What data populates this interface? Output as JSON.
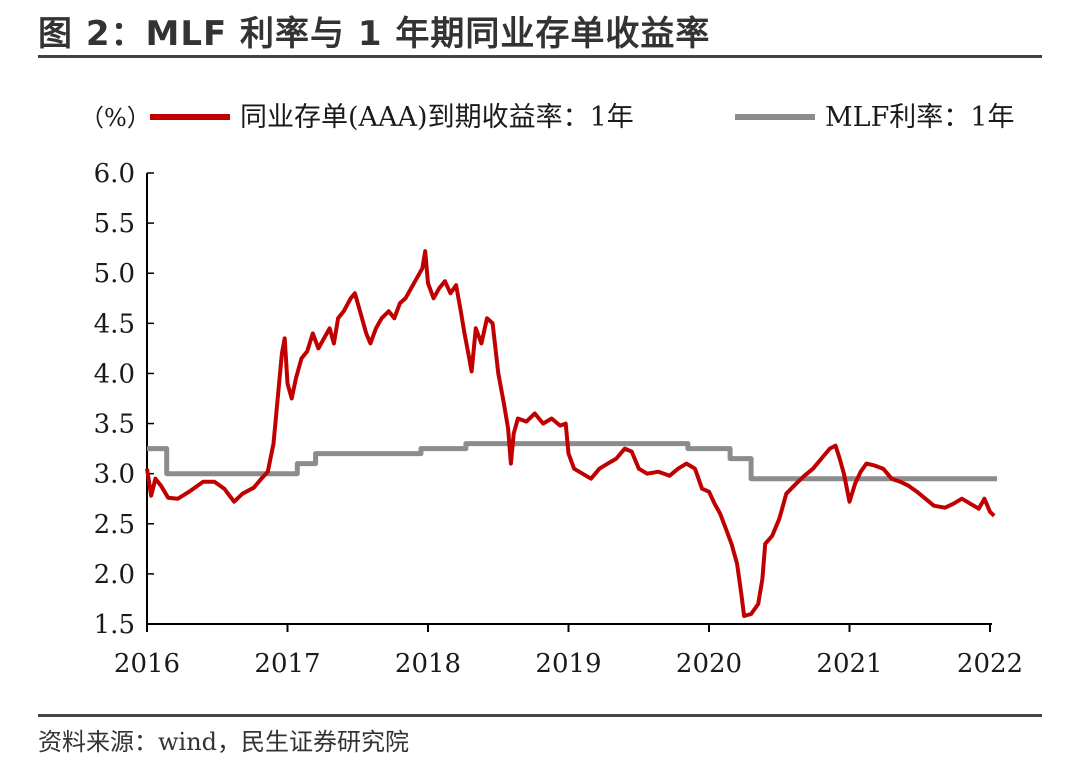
{
  "header": {
    "title": "图 2：MLF 利率与 1 年期同业存单收益率"
  },
  "footer": {
    "source": "资料来源：wind，民生证券研究院"
  },
  "chart_data": {
    "type": "line",
    "unit_label": "（%）",
    "ylim": [
      1.5,
      6.0
    ],
    "yticks": [
      "6.0",
      "5.5",
      "5.0",
      "4.5",
      "4.0",
      "3.5",
      "3.0",
      "2.5",
      "2.0",
      "1.5"
    ],
    "ytick_values": [
      6.0,
      5.5,
      5.0,
      4.5,
      4.0,
      3.5,
      3.0,
      2.5,
      2.0,
      1.5
    ],
    "xlim": [
      2016.0,
      2022.05
    ],
    "xticks": [
      "2016",
      "2017",
      "2018",
      "2019",
      "2020",
      "2021",
      "2022"
    ],
    "xtick_values": [
      2016,
      2017,
      2018,
      2019,
      2020,
      2021,
      2022
    ],
    "legend_position": "top",
    "series": [
      {
        "name": "同业存单(AAA)到期收益率：1年",
        "color": "#c00000",
        "style": "line",
        "points": [
          [
            2016.0,
            3.05
          ],
          [
            2016.03,
            2.78
          ],
          [
            2016.06,
            2.95
          ],
          [
            2016.1,
            2.88
          ],
          [
            2016.15,
            2.76
          ],
          [
            2016.22,
            2.75
          ],
          [
            2016.3,
            2.82
          ],
          [
            2016.4,
            2.92
          ],
          [
            2016.48,
            2.92
          ],
          [
            2016.55,
            2.85
          ],
          [
            2016.62,
            2.72
          ],
          [
            2016.68,
            2.8
          ],
          [
            2016.76,
            2.86
          ],
          [
            2016.82,
            2.96
          ],
          [
            2016.86,
            3.02
          ],
          [
            2016.9,
            3.3
          ],
          [
            2016.93,
            3.75
          ],
          [
            2016.96,
            4.2
          ],
          [
            2016.98,
            4.35
          ],
          [
            2017.0,
            3.9
          ],
          [
            2017.03,
            3.75
          ],
          [
            2017.06,
            3.95
          ],
          [
            2017.1,
            4.15
          ],
          [
            2017.14,
            4.22
          ],
          [
            2017.18,
            4.4
          ],
          [
            2017.22,
            4.25
          ],
          [
            2017.26,
            4.35
          ],
          [
            2017.3,
            4.45
          ],
          [
            2017.33,
            4.3
          ],
          [
            2017.36,
            4.55
          ],
          [
            2017.4,
            4.62
          ],
          [
            2017.45,
            4.75
          ],
          [
            2017.48,
            4.8
          ],
          [
            2017.52,
            4.6
          ],
          [
            2017.56,
            4.4
          ],
          [
            2017.59,
            4.3
          ],
          [
            2017.63,
            4.45
          ],
          [
            2017.67,
            4.55
          ],
          [
            2017.72,
            4.62
          ],
          [
            2017.76,
            4.55
          ],
          [
            2017.8,
            4.7
          ],
          [
            2017.84,
            4.75
          ],
          [
            2017.88,
            4.85
          ],
          [
            2017.92,
            4.95
          ],
          [
            2017.96,
            5.05
          ],
          [
            2017.98,
            5.22
          ],
          [
            2018.0,
            4.9
          ],
          [
            2018.04,
            4.75
          ],
          [
            2018.08,
            4.85
          ],
          [
            2018.12,
            4.92
          ],
          [
            2018.16,
            4.8
          ],
          [
            2018.2,
            4.88
          ],
          [
            2018.23,
            4.65
          ],
          [
            2018.26,
            4.4
          ],
          [
            2018.29,
            4.18
          ],
          [
            2018.31,
            4.02
          ],
          [
            2018.34,
            4.45
          ],
          [
            2018.38,
            4.3
          ],
          [
            2018.42,
            4.55
          ],
          [
            2018.46,
            4.5
          ],
          [
            2018.5,
            4.0
          ],
          [
            2018.54,
            3.7
          ],
          [
            2018.57,
            3.45
          ],
          [
            2018.59,
            3.1
          ],
          [
            2018.61,
            3.4
          ],
          [
            2018.64,
            3.55
          ],
          [
            2018.7,
            3.52
          ],
          [
            2018.76,
            3.6
          ],
          [
            2018.82,
            3.5
          ],
          [
            2018.88,
            3.55
          ],
          [
            2018.94,
            3.48
          ],
          [
            2018.98,
            3.5
          ],
          [
            2019.0,
            3.2
          ],
          [
            2019.04,
            3.05
          ],
          [
            2019.1,
            3.0
          ],
          [
            2019.16,
            2.95
          ],
          [
            2019.22,
            3.05
          ],
          [
            2019.28,
            3.1
          ],
          [
            2019.34,
            3.15
          ],
          [
            2019.4,
            3.25
          ],
          [
            2019.45,
            3.22
          ],
          [
            2019.5,
            3.05
          ],
          [
            2019.56,
            3.0
          ],
          [
            2019.64,
            3.02
          ],
          [
            2019.72,
            2.98
          ],
          [
            2019.78,
            3.05
          ],
          [
            2019.84,
            3.1
          ],
          [
            2019.9,
            3.05
          ],
          [
            2019.95,
            2.85
          ],
          [
            2020.0,
            2.82
          ],
          [
            2020.04,
            2.7
          ],
          [
            2020.08,
            2.6
          ],
          [
            2020.12,
            2.45
          ],
          [
            2020.16,
            2.3
          ],
          [
            2020.2,
            2.1
          ],
          [
            2020.23,
            1.8
          ],
          [
            2020.25,
            1.58
          ],
          [
            2020.3,
            1.6
          ],
          [
            2020.35,
            1.7
          ],
          [
            2020.38,
            1.95
          ],
          [
            2020.4,
            2.3
          ],
          [
            2020.45,
            2.38
          ],
          [
            2020.5,
            2.55
          ],
          [
            2020.55,
            2.8
          ],
          [
            2020.62,
            2.9
          ],
          [
            2020.68,
            2.98
          ],
          [
            2020.74,
            3.05
          ],
          [
            2020.8,
            3.15
          ],
          [
            2020.86,
            3.25
          ],
          [
            2020.9,
            3.28
          ],
          [
            2020.93,
            3.15
          ],
          [
            2020.96,
            3.0
          ],
          [
            2021.0,
            2.72
          ],
          [
            2021.04,
            2.9
          ],
          [
            2021.08,
            3.02
          ],
          [
            2021.12,
            3.1
          ],
          [
            2021.18,
            3.08
          ],
          [
            2021.24,
            3.05
          ],
          [
            2021.3,
            2.95
          ],
          [
            2021.36,
            2.92
          ],
          [
            2021.42,
            2.88
          ],
          [
            2021.48,
            2.82
          ],
          [
            2021.54,
            2.75
          ],
          [
            2021.6,
            2.68
          ],
          [
            2021.68,
            2.66
          ],
          [
            2021.74,
            2.7
          ],
          [
            2021.8,
            2.75
          ],
          [
            2021.86,
            2.7
          ],
          [
            2021.92,
            2.65
          ],
          [
            2021.96,
            2.75
          ],
          [
            2022.0,
            2.62
          ],
          [
            2022.03,
            2.58
          ]
        ]
      },
      {
        "name": "MLF利率：1年",
        "color": "#8c8c8c",
        "style": "step",
        "points": [
          [
            2016.0,
            3.25
          ],
          [
            2016.14,
            3.25
          ],
          [
            2016.14,
            3.0
          ],
          [
            2017.07,
            3.0
          ],
          [
            2017.07,
            3.1
          ],
          [
            2017.2,
            3.1
          ],
          [
            2017.2,
            3.2
          ],
          [
            2017.95,
            3.2
          ],
          [
            2017.95,
            3.25
          ],
          [
            2018.27,
            3.25
          ],
          [
            2018.27,
            3.3
          ],
          [
            2019.85,
            3.3
          ],
          [
            2019.85,
            3.25
          ],
          [
            2020.15,
            3.25
          ],
          [
            2020.15,
            3.15
          ],
          [
            2020.3,
            3.15
          ],
          [
            2020.3,
            2.95
          ],
          [
            2022.05,
            2.95
          ]
        ]
      }
    ]
  }
}
